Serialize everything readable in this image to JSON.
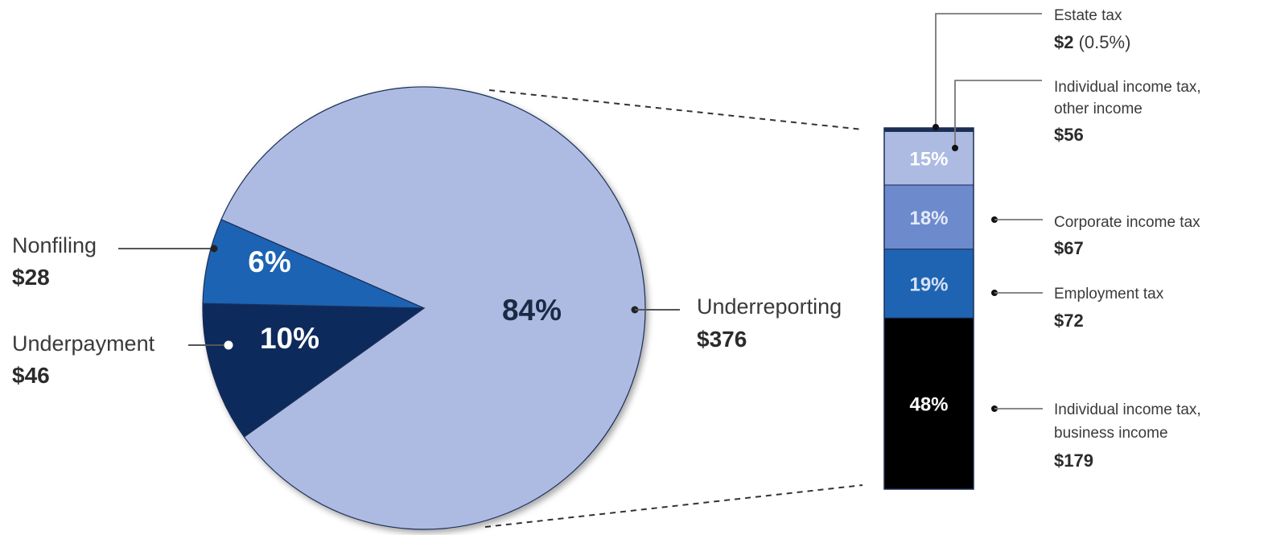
{
  "chart_data": [
    {
      "type": "pie",
      "categories": [
        "Underreporting",
        "Underpayment",
        "Nonfiling"
      ],
      "values": [
        376,
        46,
        28
      ],
      "value_labels": [
        "$376",
        "$46",
        "$28"
      ],
      "percent_labels": [
        "84%",
        "10%",
        "6%"
      ],
      "colors": [
        "#adbbe3",
        "#0c2a5c",
        "#1f64b3"
      ]
    },
    {
      "type": "bar",
      "stacked": true,
      "categories": [
        "Individual income tax, business income",
        "Employment tax",
        "Corporate income tax",
        "Individual income tax, other income",
        "Estate tax"
      ],
      "label_lines": [
        [
          "Individual income tax,",
          "business income"
        ],
        [
          "Employment tax"
        ],
        [
          "Corporate income tax"
        ],
        [
          "Individual income tax,",
          "other income"
        ],
        [
          "Estate tax"
        ]
      ],
      "values": [
        179,
        72,
        67,
        56,
        2
      ],
      "value_labels": [
        "$179",
        "$72",
        "$67",
        "$56",
        "$2"
      ],
      "value_suffix": [
        "",
        "",
        "",
        "",
        " (0.5%)"
      ],
      "percent_labels": [
        "48%",
        "19%",
        "18%",
        "15%",
        ""
      ],
      "colors": [
        "#000000",
        "#1f64b3",
        "#6d8acd",
        "#adbbe3",
        "#1a2e52"
      ],
      "percent_colors": [
        "#ffffff",
        "#d6e2f5",
        "#e4eaf8",
        "#ffffff",
        "#ffffff"
      ]
    }
  ]
}
